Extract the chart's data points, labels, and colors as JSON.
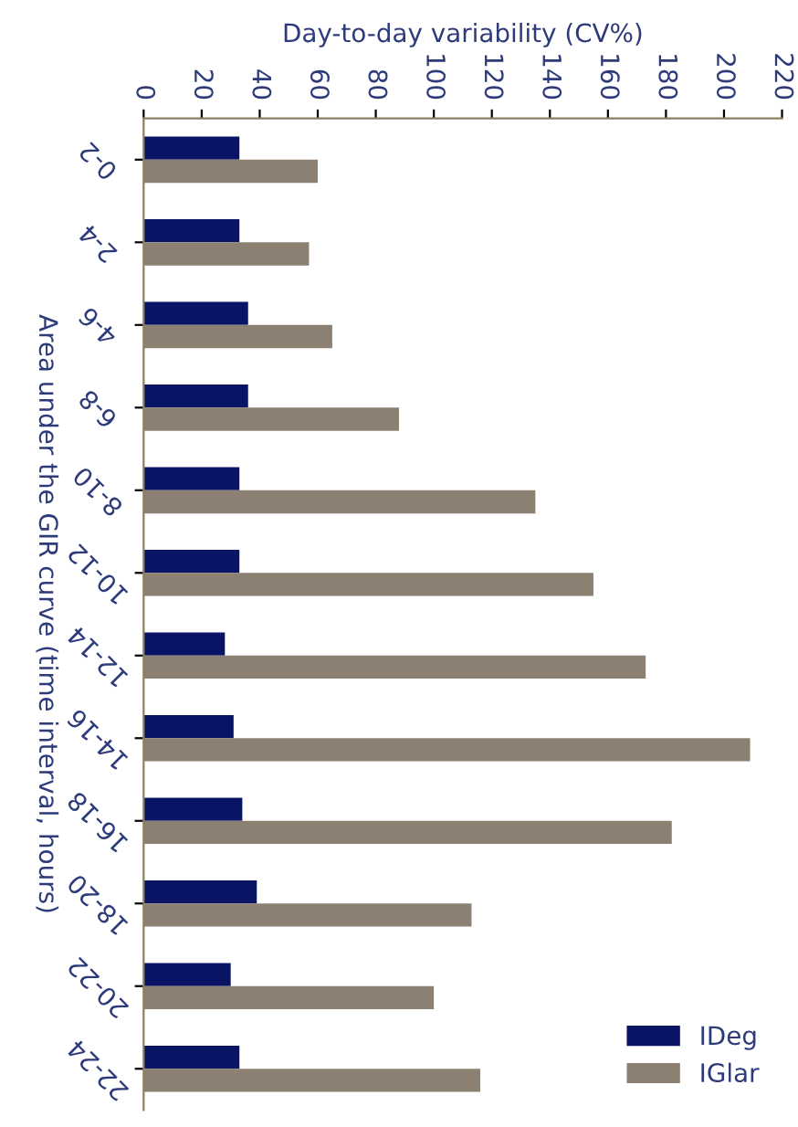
{
  "chart_data": {
    "type": "bar",
    "orientation": "horizontal",
    "xlabel": "Day-to-day variability (CV%)",
    "ylabel": "Area under the GIR curve (time interval, hours)",
    "categories": [
      "0-2",
      "2-4",
      "4-6",
      "6-8",
      "8-10",
      "10-12",
      "12-14",
      "14-16",
      "16-18",
      "18-20",
      "20-22",
      "22-24"
    ],
    "series": [
      {
        "name": "IDeg",
        "color": "#0a1464",
        "values": [
          33,
          33,
          36,
          36,
          33,
          33,
          28,
          31,
          34,
          39,
          30,
          33
        ]
      },
      {
        "name": "IGlar",
        "color": "#8c8073",
        "values": [
          60,
          57,
          65,
          88,
          135,
          155,
          173,
          209,
          182,
          113,
          100,
          116
        ]
      }
    ],
    "xlim": [
      0,
      220
    ],
    "xticks": [
      0,
      20,
      40,
      60,
      80,
      100,
      120,
      140,
      160,
      180,
      200,
      220
    ],
    "grid": false,
    "legend": "bottom right"
  }
}
